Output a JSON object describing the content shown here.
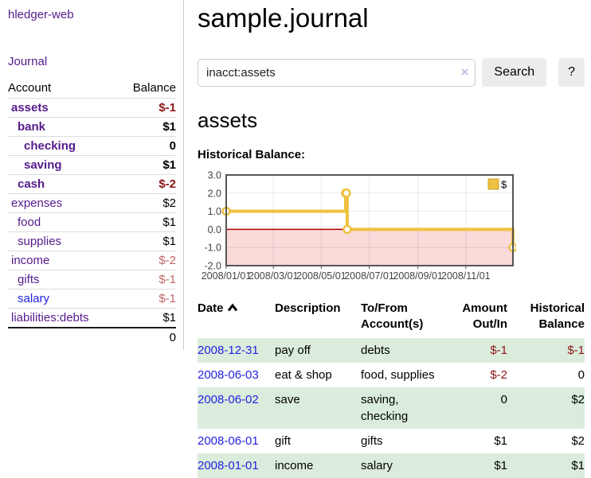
{
  "app": {
    "title": "hledger-web",
    "nav_journal": "Journal"
  },
  "sidebar": {
    "header": {
      "account": "Account",
      "balance": "Balance"
    },
    "accounts": [
      {
        "name": "assets",
        "balance": "$-1"
      },
      {
        "name": "bank",
        "balance": "$1"
      },
      {
        "name": "checking",
        "balance": "0"
      },
      {
        "name": "saving",
        "balance": "$1"
      },
      {
        "name": "cash",
        "balance": "$-2"
      },
      {
        "name": "expenses",
        "balance": "$2"
      },
      {
        "name": "food",
        "balance": "$1"
      },
      {
        "name": "supplies",
        "balance": "$1"
      },
      {
        "name": "income",
        "balance": "$-2"
      },
      {
        "name": "gifts",
        "balance": "$-1"
      },
      {
        "name": "salary",
        "balance": "$-1"
      },
      {
        "name": "liabilities:debts",
        "balance": "$1"
      }
    ],
    "total": "0"
  },
  "header": {
    "title": "sample.journal"
  },
  "search": {
    "value": "inacct:assets",
    "clear_icon": "×",
    "button": "Search",
    "help_button": "?"
  },
  "account_page": {
    "heading": "assets",
    "chart_title": "Historical Balance:"
  },
  "chart_data": {
    "type": "line",
    "style": "step",
    "title": "Historical Balance",
    "series": [
      {
        "name": "$",
        "color": "#EDC240",
        "points": [
          {
            "date": "2008-01-01",
            "value": 1
          },
          {
            "date": "2008-06-01",
            "value": 2
          },
          {
            "date": "2008-06-02",
            "value": 2
          },
          {
            "date": "2008-06-03",
            "value": 0
          },
          {
            "date": "2008-12-31",
            "value": -1
          }
        ]
      }
    ],
    "x_range": [
      "2008-01-01",
      "2008-12-31"
    ],
    "x_ticks": [
      "2008/01/01",
      "2008/03/01",
      "2008/05/01",
      "2008/07/01",
      "2008/09/01",
      "2008/11/01"
    ],
    "ylim": [
      -2,
      3
    ],
    "y_ticks": [
      "3.0",
      "2.0",
      "1.0",
      "0.0",
      "-1.0",
      "-2.0"
    ],
    "legend": "$",
    "legend_position": "top-right",
    "grid": true,
    "negative_fill": "#fbdada",
    "zero_line_color": "#aa0000",
    "border_color": "#555555"
  },
  "register": {
    "columns": [
      "Date",
      "Description",
      "To/From Account(s)",
      "Amount Out/In",
      "Historical Balance"
    ],
    "rows": [
      {
        "date": "2008-12-31",
        "description": "pay off",
        "accounts": "debts",
        "amount": "$-1",
        "balance": "$-1"
      },
      {
        "date": "2008-06-03",
        "description": "eat & shop",
        "accounts": "food, supplies",
        "amount": "$-2",
        "balance": "0"
      },
      {
        "date": "2008-06-02",
        "description": "save",
        "accounts": "saving, checking",
        "amount": "0",
        "balance": "$2"
      },
      {
        "date": "2008-06-01",
        "description": "gift",
        "accounts": "gifts",
        "amount": "$1",
        "balance": "$2"
      },
      {
        "date": "2008-01-01",
        "description": "income",
        "accounts": "salary",
        "amount": "$1",
        "balance": "$1"
      }
    ]
  },
  "colors": {
    "link_purple": "#551A8B",
    "link_blue": "#2222e0",
    "negative_strong": "#8b1515",
    "negative_soft": "#c06666",
    "row_green": "#dcecdc",
    "series_gold": "#EDC240",
    "chart_negative_region": "#fbdada",
    "zero_line": "#aa0000"
  }
}
